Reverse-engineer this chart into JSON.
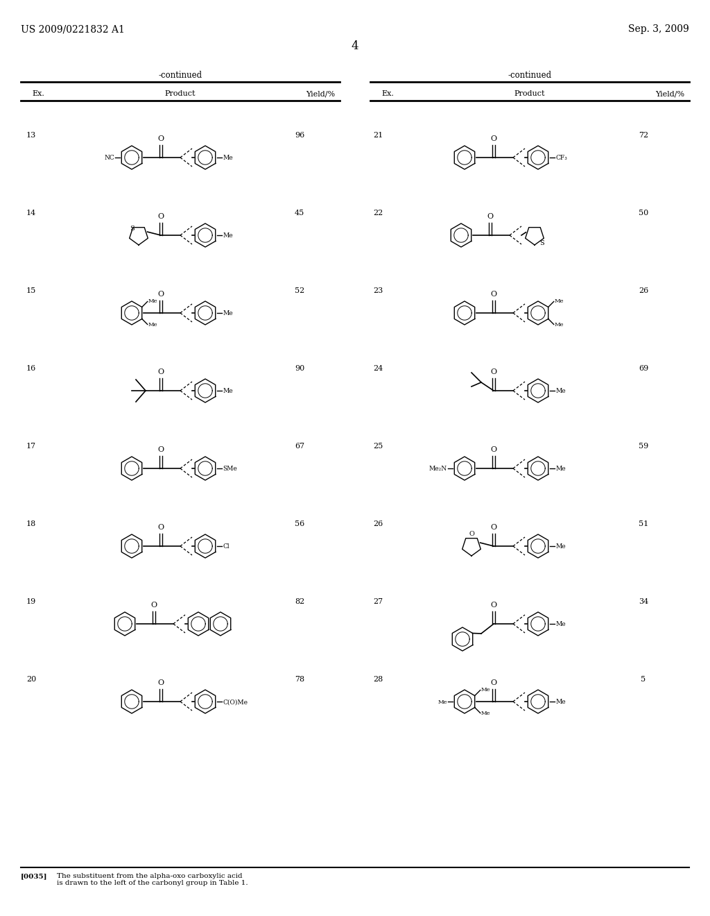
{
  "page_header_left": "US 2009/0221832 A1",
  "page_header_right": "Sep. 3, 2009",
  "page_number": "4",
  "table_header": "-continued",
  "col_headers": [
    "Ex.",
    "Product",
    "Yield/%"
  ],
  "left_examples": [
    {
      "ex": "13",
      "yield": "96"
    },
    {
      "ex": "14",
      "yield": "45"
    },
    {
      "ex": "15",
      "yield": "52"
    },
    {
      "ex": "16",
      "yield": "90"
    },
    {
      "ex": "17",
      "yield": "67"
    },
    {
      "ex": "18",
      "yield": "56"
    },
    {
      "ex": "19",
      "yield": "82"
    },
    {
      "ex": "20",
      "yield": "78"
    }
  ],
  "right_examples": [
    {
      "ex": "21",
      "yield": "72"
    },
    {
      "ex": "22",
      "yield": "50"
    },
    {
      "ex": "23",
      "yield": "26"
    },
    {
      "ex": "24",
      "yield": "69"
    },
    {
      "ex": "25",
      "yield": "59"
    },
    {
      "ex": "26",
      "yield": "51"
    },
    {
      "ex": "27",
      "yield": "34"
    },
    {
      "ex": "28",
      "yield": "5"
    }
  ],
  "footer_ref": "[0035]",
  "footer_text": "The substituent from the alpha-oxo carboxylic acid\nis drawn to the left of the carbonyl group in Table 1.",
  "bg_color": "#ffffff"
}
